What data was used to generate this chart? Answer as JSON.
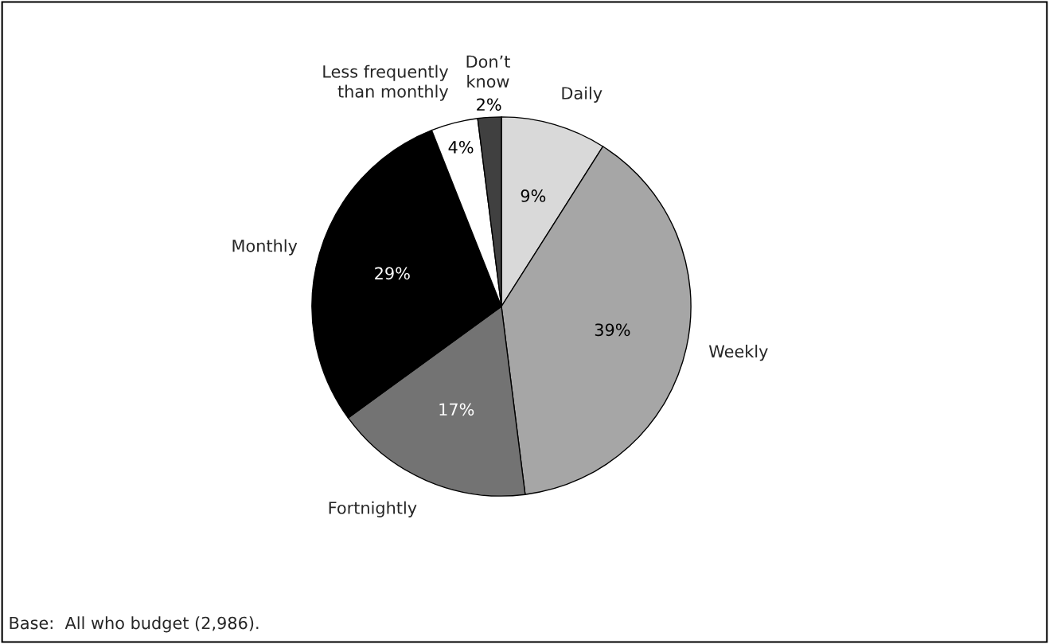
{
  "chart_data": {
    "type": "pie",
    "categories": [
      "Daily",
      "Weekly",
      "Fortnightly",
      "Monthly",
      "Less frequently\nthan monthly",
      "Don’t\nknow"
    ],
    "values": [
      9,
      39,
      17,
      29,
      4,
      2
    ],
    "value_labels": [
      "9%",
      "39%",
      "17%",
      "29%",
      "4%",
      "2%"
    ],
    "colors": [
      "#d9d9d9",
      "#a6a6a6",
      "#737373",
      "#000000",
      "#ffffff",
      "#404040"
    ],
    "annotations": [
      "Base:  All who budget (2,986)."
    ]
  }
}
